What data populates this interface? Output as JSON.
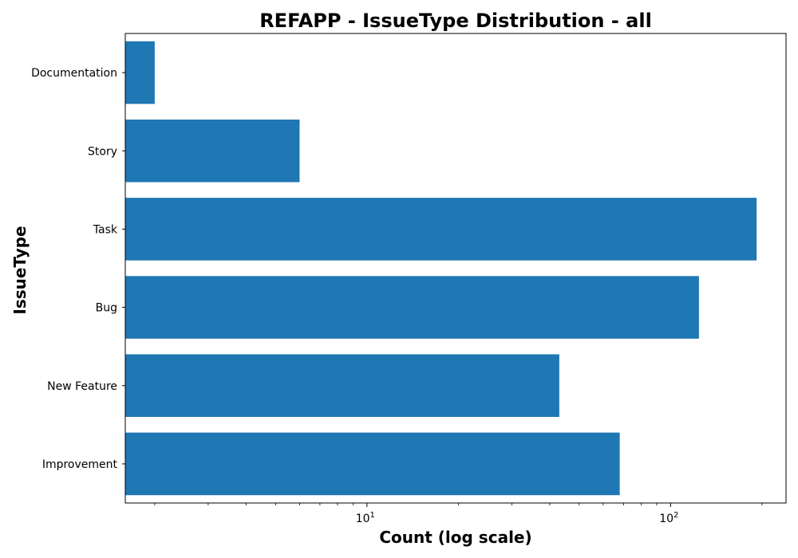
{
  "chart_data": {
    "type": "bar",
    "orientation": "horizontal",
    "title": "REFAPP - IssueType Distribution - all",
    "xlabel": "Count (log scale)",
    "ylabel": "IssueType",
    "x_scale": "log",
    "xlim": [
      1.6,
      240
    ],
    "x_major_ticks": [
      {
        "base": "10",
        "exp": "1",
        "value": 10
      },
      {
        "base": "10",
        "exp": "2",
        "value": 100
      }
    ],
    "categories": [
      "Documentation",
      "Story",
      "Task",
      "Bug",
      "New Feature",
      "Improvement"
    ],
    "values": [
      2,
      6,
      192,
      124,
      43,
      68
    ],
    "bar_color": "#1f77b4",
    "grid": false,
    "legend": false
  }
}
